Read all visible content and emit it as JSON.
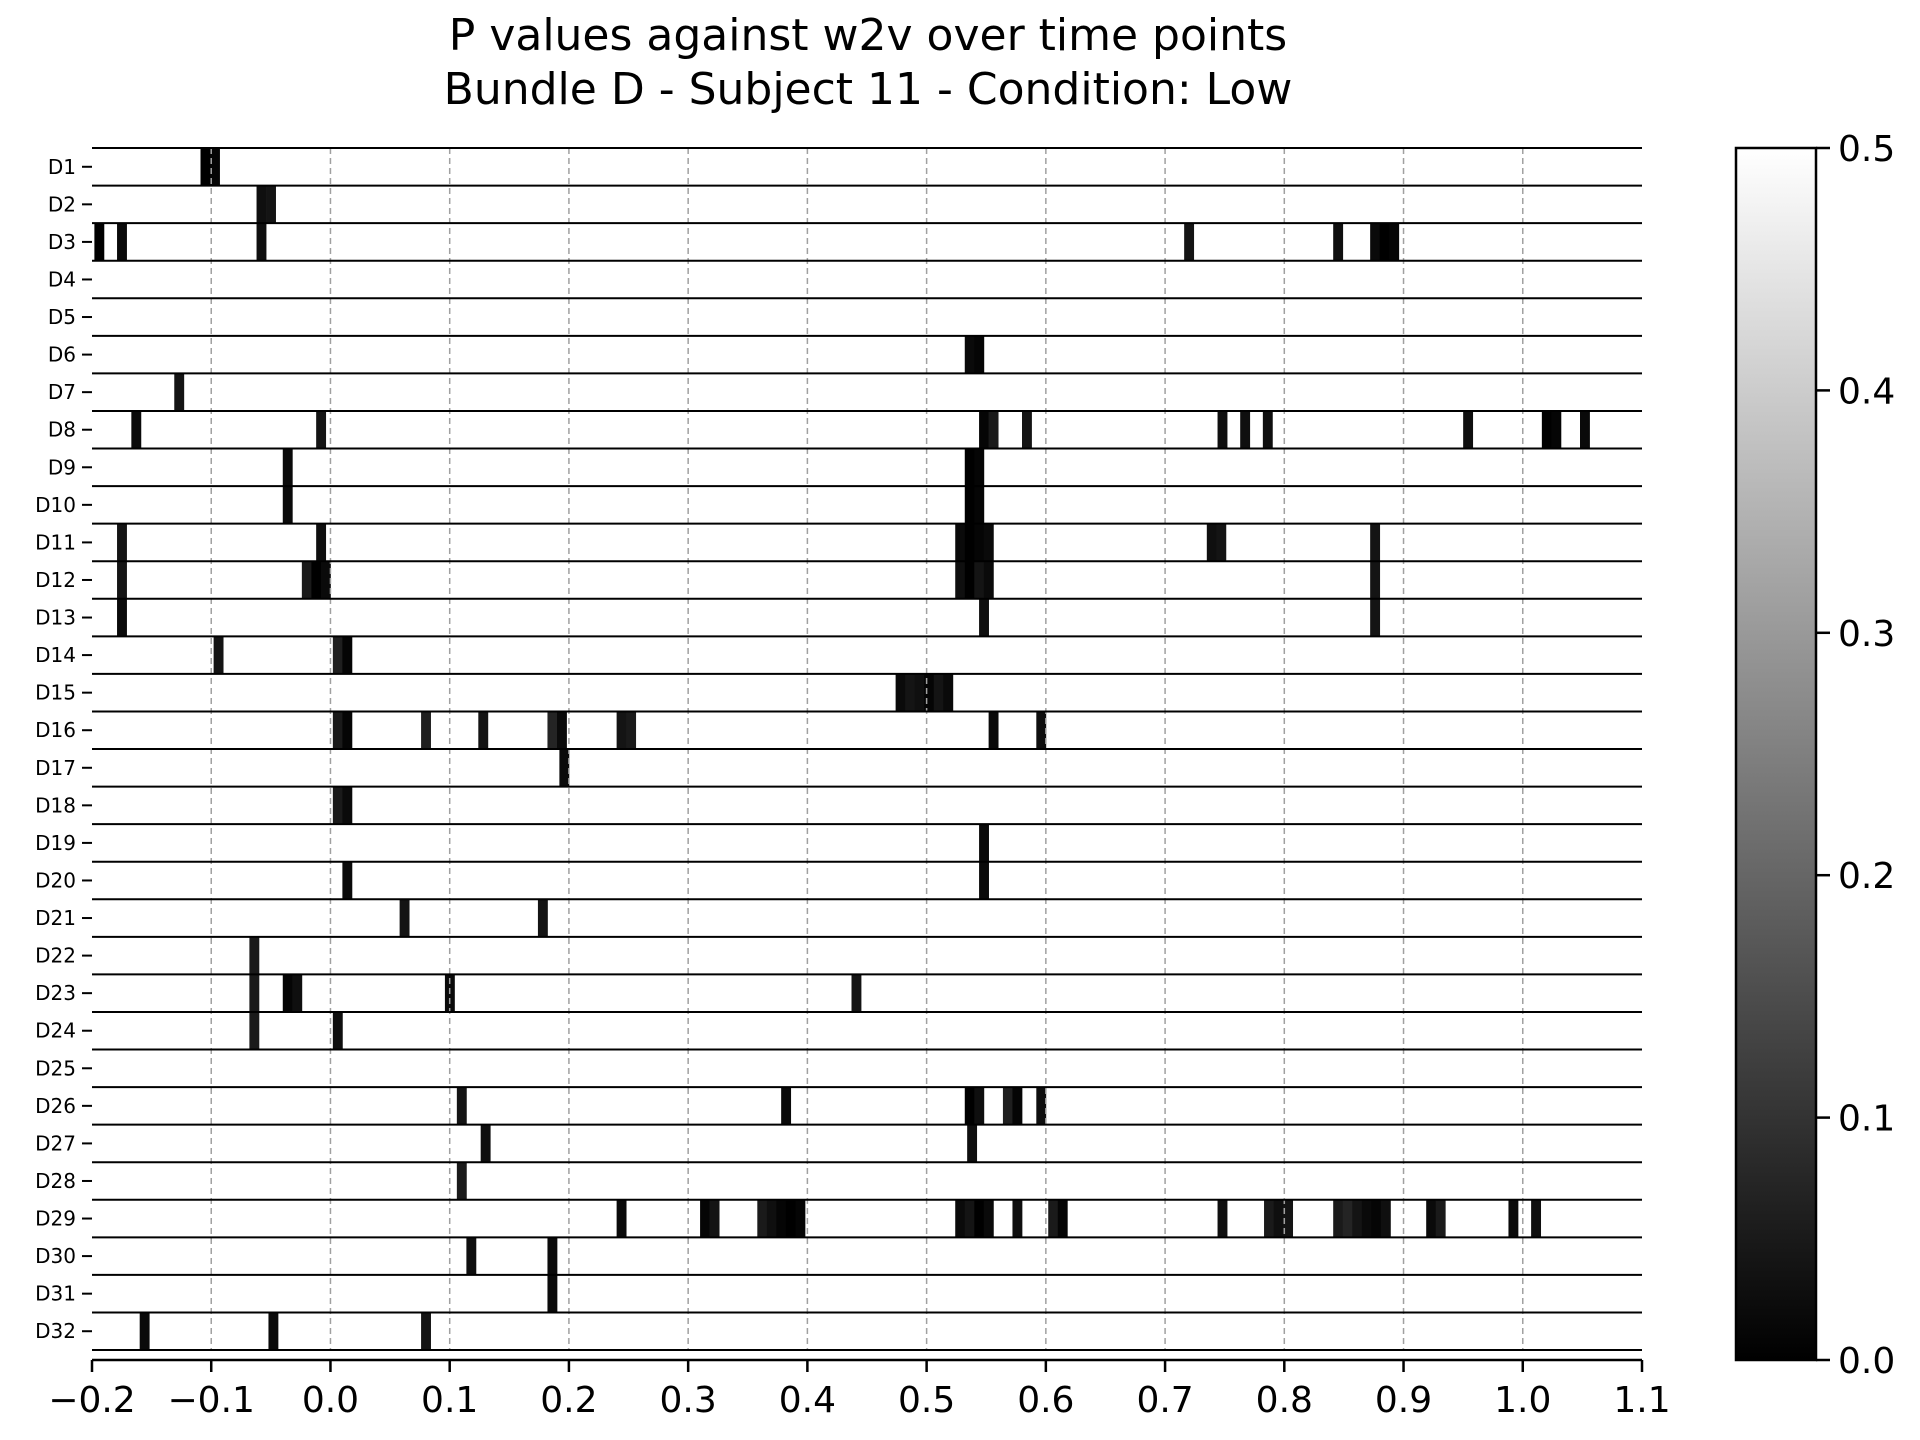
{
  "chart_data": {
    "type": "heatmap",
    "title": "P values against w2v over time points",
    "subtitle": "Bundle D - Subject 11 - Condition: Low",
    "xlabel": "",
    "ylabel": "",
    "xlim": [
      -0.2,
      1.1
    ],
    "x_ticks": [
      "−0.2",
      "−0.1",
      "0.0",
      "0.1",
      "0.2",
      "0.3",
      "0.4",
      "0.5",
      "0.6",
      "0.7",
      "0.8",
      "0.9",
      "1.0",
      "1.1"
    ],
    "x_tick_values": [
      -0.2,
      -0.1,
      0.0,
      0.1,
      0.2,
      0.3,
      0.4,
      0.5,
      0.6,
      0.7,
      0.8,
      0.9,
      1.0,
      1.1
    ],
    "grid": "vertical dashed at x ticks",
    "colorbar": {
      "range": [
        0.0,
        0.5
      ],
      "tick_values": [
        0.0,
        0.1,
        0.2,
        0.3,
        0.4,
        0.5
      ],
      "tick_labels": [
        "0.0",
        "0.1",
        "0.2",
        "0.3",
        "0.4",
        "0.5"
      ],
      "colormap": "gray",
      "low_color": "#000000",
      "high_color": "#ffffff"
    },
    "bin_width": 0.0078,
    "rows": [
      {
        "label": "D1",
        "segments": [
          [
            -0.109,
            0.0
          ],
          [
            -0.101,
            0.01
          ]
        ]
      },
      {
        "label": "D2",
        "segments": [
          [
            -0.062,
            0.03
          ],
          [
            -0.054,
            0.04
          ]
        ]
      },
      {
        "label": "D3",
        "segments": [
          [
            -0.198,
            0.0
          ],
          [
            -0.179,
            0.02
          ],
          [
            -0.062,
            0.03
          ],
          [
            0.716,
            0.04
          ],
          [
            0.841,
            0.03
          ],
          [
            0.872,
            0.02
          ],
          [
            0.88,
            0.0
          ],
          [
            0.888,
            0.01
          ]
        ]
      },
      {
        "label": "D4",
        "segments": []
      },
      {
        "label": "D5",
        "segments": []
      },
      {
        "label": "D6",
        "segments": [
          [
            0.532,
            0.02
          ],
          [
            0.54,
            0.01
          ]
        ]
      },
      {
        "label": "D7",
        "segments": [
          [
            -0.131,
            0.04
          ]
        ]
      },
      {
        "label": "D8",
        "segments": [
          [
            -0.167,
            0.02
          ],
          [
            -0.012,
            0.04
          ],
          [
            0.544,
            0.01
          ],
          [
            0.552,
            0.05
          ],
          [
            0.58,
            0.04
          ],
          [
            0.744,
            0.03
          ],
          [
            0.763,
            0.03
          ],
          [
            0.782,
            0.03
          ],
          [
            0.95,
            0.03
          ],
          [
            1.016,
            0.0
          ],
          [
            1.024,
            0.01
          ],
          [
            1.048,
            0.02
          ]
        ]
      },
      {
        "label": "D9",
        "segments": [
          [
            -0.04,
            0.02
          ],
          [
            0.532,
            0.0
          ],
          [
            0.54,
            0.01
          ]
        ]
      },
      {
        "label": "D10",
        "segments": [
          [
            -0.04,
            0.02
          ],
          [
            0.532,
            0.0
          ],
          [
            0.54,
            0.01
          ]
        ]
      },
      {
        "label": "D11",
        "segments": [
          [
            -0.179,
            0.04
          ],
          [
            -0.012,
            0.03
          ],
          [
            0.524,
            0.02
          ],
          [
            0.532,
            0.0
          ],
          [
            0.54,
            0.01
          ],
          [
            0.548,
            0.02
          ],
          [
            0.735,
            0.03
          ],
          [
            0.743,
            0.04
          ],
          [
            0.872,
            0.04
          ]
        ]
      },
      {
        "label": "D12",
        "segments": [
          [
            -0.179,
            0.04
          ],
          [
            -0.024,
            0.05
          ],
          [
            -0.016,
            0.0
          ],
          [
            -0.008,
            0.02
          ],
          [
            0.524,
            0.03
          ],
          [
            0.532,
            0.0
          ],
          [
            0.54,
            0.04
          ],
          [
            0.548,
            0.02
          ],
          [
            0.872,
            0.04
          ]
        ]
      },
      {
        "label": "D13",
        "segments": [
          [
            -0.179,
            0.02
          ],
          [
            0.544,
            0.03
          ],
          [
            0.872,
            0.04
          ]
        ]
      },
      {
        "label": "D14",
        "segments": [
          [
            -0.098,
            0.04
          ],
          [
            0.002,
            0.06
          ],
          [
            0.01,
            0.01
          ]
        ]
      },
      {
        "label": "D15",
        "segments": [
          [
            0.474,
            0.02
          ],
          [
            0.482,
            0.04
          ],
          [
            0.49,
            0.03
          ],
          [
            0.498,
            0.01
          ],
          [
            0.506,
            0.04
          ],
          [
            0.514,
            0.02
          ]
        ]
      },
      {
        "label": "D16",
        "segments": [
          [
            0.002,
            0.05
          ],
          [
            0.01,
            0.01
          ],
          [
            0.076,
            0.06
          ],
          [
            0.124,
            0.04
          ],
          [
            0.182,
            0.07
          ],
          [
            0.19,
            0.02
          ],
          [
            0.24,
            0.04
          ],
          [
            0.248,
            0.05
          ],
          [
            0.552,
            0.02
          ],
          [
            0.592,
            0.03
          ]
        ]
      },
      {
        "label": "D17",
        "segments": [
          [
            0.192,
            0.02
          ]
        ]
      },
      {
        "label": "D18",
        "segments": [
          [
            0.002,
            0.05
          ],
          [
            0.01,
            0.02
          ]
        ]
      },
      {
        "label": "D19",
        "segments": [
          [
            0.544,
            0.02
          ]
        ]
      },
      {
        "label": "D20",
        "segments": [
          [
            0.01,
            0.02
          ],
          [
            0.544,
            0.02
          ]
        ]
      },
      {
        "label": "D21",
        "segments": [
          [
            0.058,
            0.04
          ],
          [
            0.174,
            0.04
          ]
        ]
      },
      {
        "label": "D22",
        "segments": [
          [
            -0.068,
            0.05
          ]
        ]
      },
      {
        "label": "D23",
        "segments": [
          [
            -0.068,
            0.05
          ],
          [
            -0.04,
            0.01
          ],
          [
            -0.032,
            0.03
          ],
          [
            0.096,
            0.02
          ],
          [
            0.437,
            0.04
          ]
        ]
      },
      {
        "label": "D24",
        "segments": [
          [
            -0.068,
            0.05
          ],
          [
            0.002,
            0.03
          ]
        ]
      },
      {
        "label": "D25",
        "segments": []
      },
      {
        "label": "D26",
        "segments": [
          [
            0.106,
            0.04
          ],
          [
            0.378,
            0.02
          ],
          [
            0.532,
            0.0
          ],
          [
            0.54,
            0.03
          ],
          [
            0.564,
            0.06
          ],
          [
            0.572,
            0.01
          ],
          [
            0.592,
            0.03
          ]
        ]
      },
      {
        "label": "D27",
        "segments": [
          [
            0.126,
            0.03
          ],
          [
            0.534,
            0.03
          ]
        ]
      },
      {
        "label": "D28",
        "segments": [
          [
            0.106,
            0.05
          ]
        ]
      },
      {
        "label": "D29",
        "segments": [
          [
            0.24,
            0.02
          ],
          [
            0.31,
            0.01
          ],
          [
            0.318,
            0.04
          ],
          [
            0.358,
            0.05
          ],
          [
            0.366,
            0.03
          ],
          [
            0.374,
            0.01
          ],
          [
            0.382,
            0.0
          ],
          [
            0.39,
            0.01
          ],
          [
            0.524,
            0.02
          ],
          [
            0.532,
            0.04
          ],
          [
            0.54,
            0.0
          ],
          [
            0.548,
            0.02
          ],
          [
            0.572,
            0.03
          ],
          [
            0.602,
            0.05
          ],
          [
            0.61,
            0.01
          ],
          [
            0.744,
            0.03
          ],
          [
            0.783,
            0.05
          ],
          [
            0.791,
            0.03
          ],
          [
            0.799,
            0.04
          ],
          [
            0.841,
            0.05
          ],
          [
            0.849,
            0.07
          ],
          [
            0.857,
            0.04
          ],
          [
            0.865,
            0.02
          ],
          [
            0.873,
            0.01
          ],
          [
            0.881,
            0.03
          ],
          [
            0.919,
            0.02
          ],
          [
            0.927,
            0.05
          ],
          [
            0.988,
            0.02
          ],
          [
            1.007,
            0.03
          ]
        ]
      },
      {
        "label": "D30",
        "segments": [
          [
            0.114,
            0.03
          ],
          [
            0.182,
            0.02
          ]
        ]
      },
      {
        "label": "D31",
        "segments": [
          [
            0.182,
            0.02
          ]
        ]
      },
      {
        "label": "D32",
        "segments": [
          [
            -0.16,
            0.02
          ],
          [
            -0.052,
            0.02
          ],
          [
            0.076,
            0.04
          ]
        ]
      }
    ]
  }
}
